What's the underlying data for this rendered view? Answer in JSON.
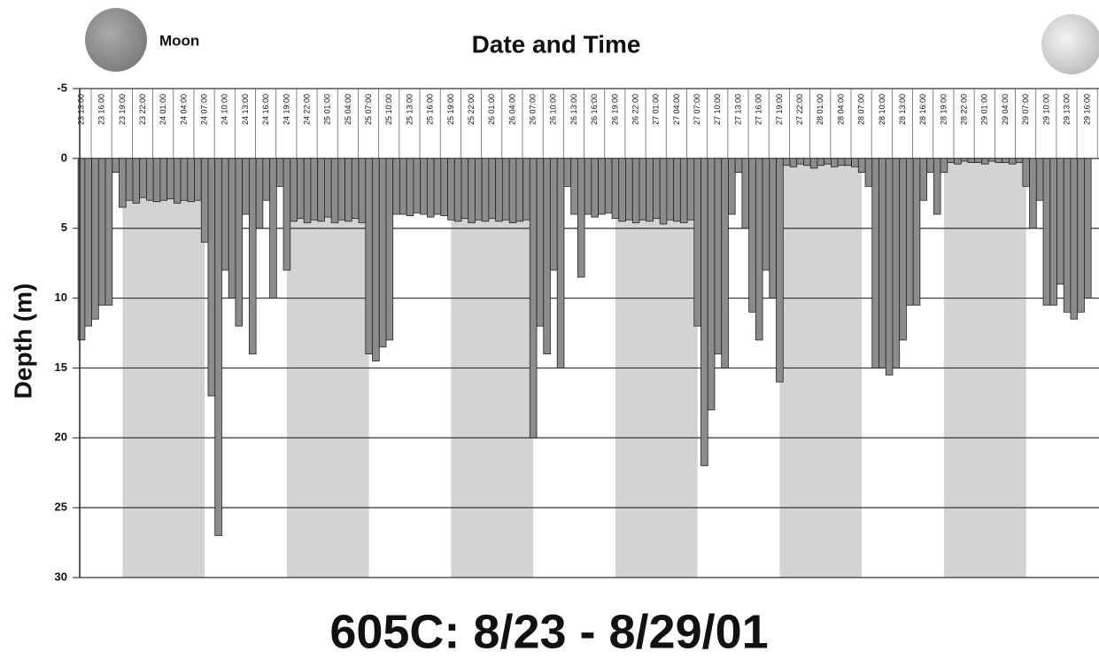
{
  "chart_data": {
    "type": "depth-bars",
    "title": "Date and Time",
    "moon_label": "Moon",
    "ylabel": "Depth (m)",
    "caption": "605C: 8/23 - 8/29/01",
    "ylim": [
      -5,
      30
    ],
    "y_inverted": true,
    "yticks": [
      -5,
      0,
      5,
      10,
      15,
      20,
      25,
      30
    ],
    "grid": true,
    "xlim": [
      0,
      148
    ],
    "xticks": [
      {
        "value": 0,
        "label": "23 13:00"
      },
      {
        "value": 3,
        "label": "23 16:00"
      },
      {
        "value": 6,
        "label": "23 19:00"
      },
      {
        "value": 9,
        "label": "23 22:00"
      },
      {
        "value": 12,
        "label": "24 01:00"
      },
      {
        "value": 15,
        "label": "24 04:00"
      },
      {
        "value": 18,
        "label": "24 07:00"
      },
      {
        "value": 21,
        "label": "24 10:00"
      },
      {
        "value": 24,
        "label": "24 13:00"
      },
      {
        "value": 27,
        "label": "24 16:00"
      },
      {
        "value": 30,
        "label": "24 19:00"
      },
      {
        "value": 33,
        "label": "24 22:00"
      },
      {
        "value": 36,
        "label": "25 01:00"
      },
      {
        "value": 39,
        "label": "25 04:00"
      },
      {
        "value": 42,
        "label": "25 07:00"
      },
      {
        "value": 45,
        "label": "25 10:00"
      },
      {
        "value": 48,
        "label": "25 13:00"
      },
      {
        "value": 51,
        "label": "25 16:00"
      },
      {
        "value": 54,
        "label": "25 19:00"
      },
      {
        "value": 57,
        "label": "25 22:00"
      },
      {
        "value": 60,
        "label": "26 01:00"
      },
      {
        "value": 63,
        "label": "26 04:00"
      },
      {
        "value": 66,
        "label": "26 07:00"
      },
      {
        "value": 69,
        "label": "26 10:00"
      },
      {
        "value": 72,
        "label": "26 13:00"
      },
      {
        "value": 75,
        "label": "26 16:00"
      },
      {
        "value": 78,
        "label": "26 19:00"
      },
      {
        "value": 81,
        "label": "26 22:00"
      },
      {
        "value": 84,
        "label": "27 01:00"
      },
      {
        "value": 87,
        "label": "27 04:00"
      },
      {
        "value": 90,
        "label": "27 07:00"
      },
      {
        "value": 93,
        "label": "27 10:00"
      },
      {
        "value": 96,
        "label": "27 13:00"
      },
      {
        "value": 99,
        "label": "27 16:00"
      },
      {
        "value": 102,
        "label": "27 19:00"
      },
      {
        "value": 105,
        "label": "27 22:00"
      },
      {
        "value": 108,
        "label": "28 01:00"
      },
      {
        "value": 111,
        "label": "28 04:00"
      },
      {
        "value": 114,
        "label": "28 07:00"
      },
      {
        "value": 117,
        "label": "28 10:00"
      },
      {
        "value": 120,
        "label": "28 13:00"
      },
      {
        "value": 123,
        "label": "28 16:00"
      },
      {
        "value": 126,
        "label": "28 19:00"
      },
      {
        "value": 129,
        "label": "28 22:00"
      },
      {
        "value": 132,
        "label": "29 01:00"
      },
      {
        "value": 135,
        "label": "29 04:00"
      },
      {
        "value": 138,
        "label": "29 07:00"
      },
      {
        "value": 141,
        "label": "29 10:00"
      },
      {
        "value": 144,
        "label": "29 13:00"
      },
      {
        "value": 147,
        "label": "29 16:00"
      }
    ],
    "shaded_x_ranges": [
      [
        6,
        18
      ],
      [
        30,
        42
      ],
      [
        54,
        66
      ],
      [
        78,
        90
      ],
      [
        102,
        114
      ],
      [
        126,
        138
      ]
    ],
    "shade_color": "#d3d3d3",
    "color": "#8c8c8c",
    "x": [
      0,
      1,
      2,
      3,
      4,
      5,
      6,
      7,
      8,
      9,
      10,
      11,
      12,
      13,
      14,
      15,
      16,
      17,
      18,
      19,
      20,
      21,
      22,
      23,
      24,
      25,
      26,
      27,
      28,
      29,
      30,
      31,
      32,
      33,
      34,
      35,
      36,
      37,
      38,
      39,
      40,
      41,
      42,
      43,
      44,
      45,
      46,
      47,
      48,
      49,
      50,
      51,
      52,
      53,
      54,
      55,
      56,
      57,
      58,
      59,
      60,
      61,
      62,
      63,
      64,
      65,
      66,
      67,
      68,
      69,
      70,
      71,
      72,
      73,
      74,
      75,
      76,
      77,
      78,
      79,
      80,
      81,
      82,
      83,
      84,
      85,
      86,
      87,
      88,
      89,
      90,
      91,
      92,
      93,
      94,
      95,
      96,
      97,
      98,
      99,
      100,
      101,
      102,
      103,
      104,
      105,
      106,
      107,
      108,
      109,
      110,
      111,
      112,
      113,
      114,
      115,
      116,
      117,
      118,
      119,
      120,
      121,
      122,
      123,
      124,
      125,
      126,
      127,
      128,
      129,
      130,
      131,
      132,
      133,
      134,
      135,
      136,
      137,
      138,
      139,
      140,
      141,
      142,
      143,
      144,
      145,
      146,
      147
    ],
    "values": [
      13,
      12,
      11.5,
      10.5,
      10.5,
      1,
      3.5,
      3,
      3.2,
      2.8,
      3,
      3.1,
      3,
      2.9,
      3.2,
      3,
      3.1,
      3,
      6,
      17,
      27,
      8,
      10,
      12,
      4,
      14,
      5,
      3,
      10,
      2,
      8,
      4.5,
      4.3,
      4.6,
      4.4,
      4.5,
      4.2,
      4.6,
      4.4,
      4.5,
      4.3,
      4.6,
      14,
      14.5,
      13.5,
      13,
      4,
      4,
      4.1,
      3.9,
      4,
      4.2,
      4,
      4.1,
      4.4,
      4.5,
      4.3,
      4.6,
      4.4,
      4.5,
      4.3,
      4.5,
      4.4,
      4.6,
      4.5,
      4.4,
      20,
      12,
      14,
      8,
      15,
      2,
      4,
      8.5,
      4,
      4.2,
      4,
      3.9,
      4.3,
      4.5,
      4.4,
      4.6,
      4.4,
      4.5,
      4.3,
      4.7,
      4.4,
      4.5,
      4.6,
      4.4,
      12,
      22,
      18,
      14,
      15,
      4,
      1,
      5,
      11,
      13,
      8,
      10,
      16,
      0.5,
      0.6,
      0.4,
      0.5,
      0.7,
      0.5,
      0.4,
      0.6,
      0.5,
      0.5,
      0.6,
      1,
      2,
      15,
      15,
      15.5,
      15,
      13,
      10.5,
      10.5,
      3,
      1,
      4,
      1,
      0.3,
      0.4,
      0.2,
      0.3,
      0.3,
      0.4,
      0.2,
      0.3,
      0.3,
      0.4,
      0.3,
      2,
      5,
      3,
      10.5,
      10.5,
      9,
      11,
      11.5,
      11,
      10
    ]
  }
}
